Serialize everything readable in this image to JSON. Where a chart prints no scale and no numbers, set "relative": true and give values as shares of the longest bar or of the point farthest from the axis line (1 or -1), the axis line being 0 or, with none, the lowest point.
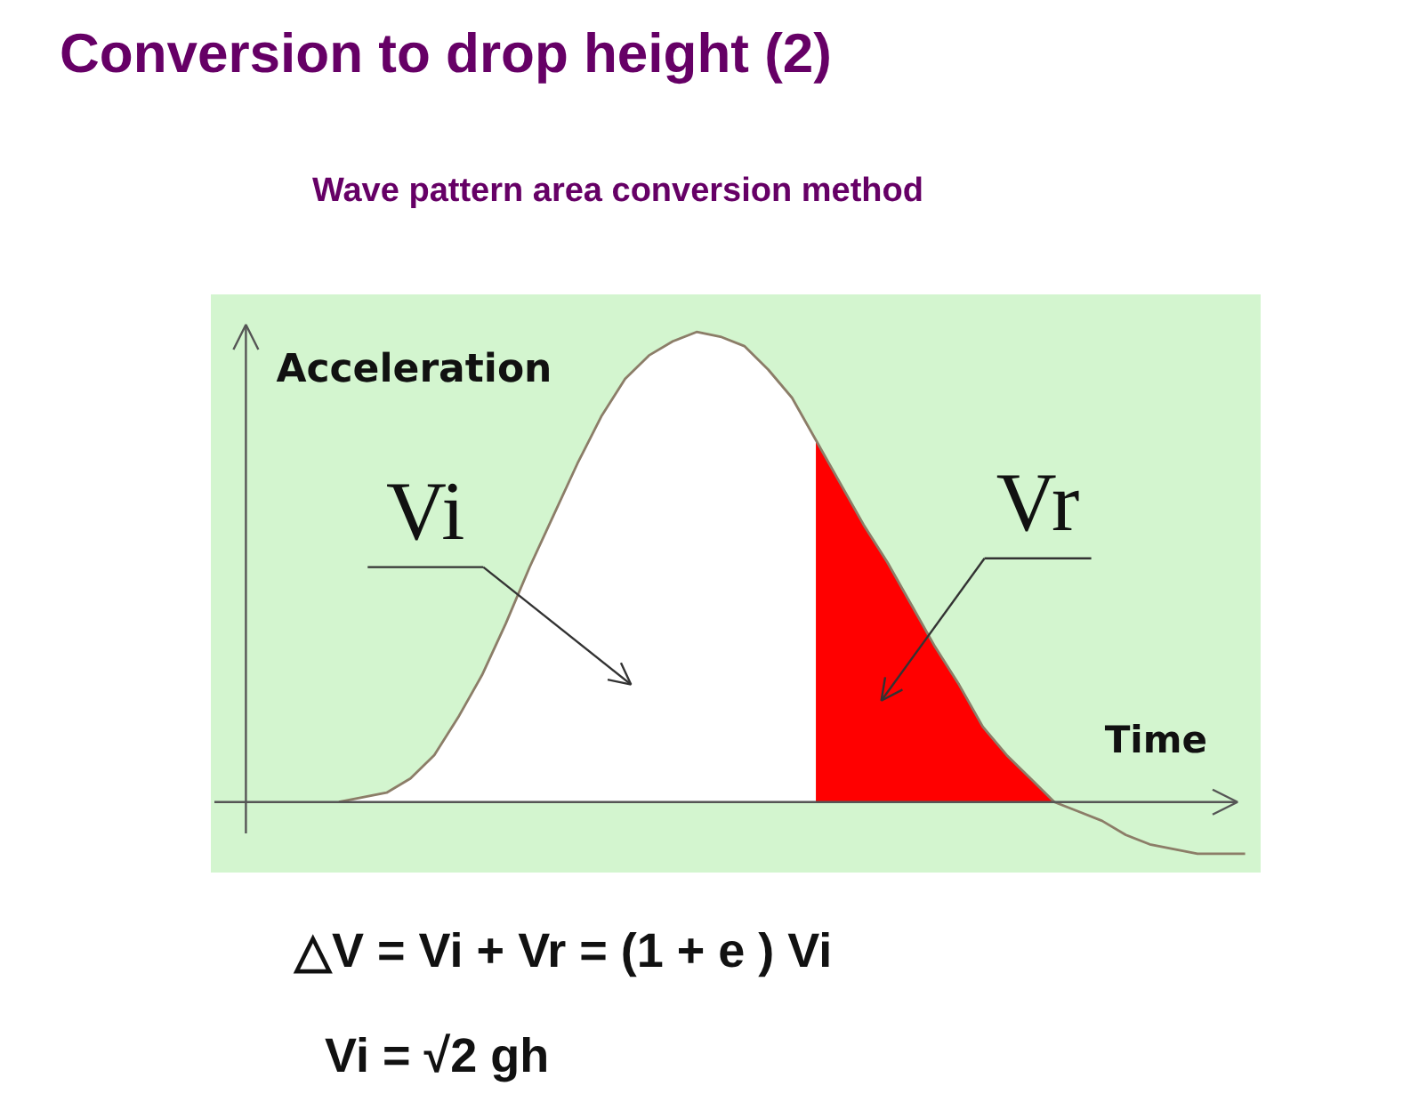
{
  "chart_data": {
    "type": "area",
    "title": "Conversion to drop height (2)",
    "subtitle": "Wave pattern area conversion method",
    "xlabel": "Time",
    "ylabel": "Acceleration",
    "categories": [
      null,
      null,
      null,
      null,
      null,
      null,
      null,
      null,
      null,
      null,
      null,
      null,
      null,
      null,
      null,
      null,
      null,
      null,
      null,
      null,
      null,
      null,
      null,
      null,
      null,
      null,
      null,
      null,
      null,
      null,
      null,
      null,
      null,
      null,
      null,
      null,
      null,
      null,
      null,
      null,
      null,
      null,
      null
    ],
    "relative": true,
    "grid": false,
    "tick_labels": false,
    "series": [
      {
        "name": "Vi",
        "color": "#ffffff",
        "values": [
          null,
          null,
          null,
          null,
          0,
          0.01,
          0.02,
          0.05,
          0.1,
          0.18,
          0.27,
          0.38,
          0.5,
          0.61,
          0.72,
          0.82,
          0.9,
          0.95,
          0.98,
          1.0,
          0.99,
          0.97,
          0.92,
          0.86,
          0.77,
          null,
          null,
          null,
          null,
          null,
          null,
          null,
          null,
          null,
          null,
          null,
          null,
          null,
          null,
          null,
          null,
          null,
          null
        ]
      },
      {
        "name": "Vr",
        "color": "#ff0000",
        "values": [
          null,
          null,
          null,
          null,
          null,
          null,
          null,
          null,
          null,
          null,
          null,
          null,
          null,
          null,
          null,
          null,
          null,
          null,
          null,
          null,
          null,
          null,
          null,
          null,
          0.77,
          0.68,
          0.59,
          0.51,
          0.42,
          0.33,
          0.25,
          0.16,
          0.1,
          0.05,
          0,
          null,
          null,
          null,
          null,
          null,
          null,
          null,
          null
        ]
      },
      {
        "type": "line",
        "color": "#8c7d68",
        "values": [
          null,
          null,
          null,
          null,
          0,
          0.01,
          0.02,
          0.05,
          0.1,
          0.18,
          0.27,
          0.38,
          0.5,
          0.61,
          0.72,
          0.82,
          0.9,
          0.95,
          0.98,
          1.0,
          0.99,
          0.97,
          0.92,
          0.86,
          0.77,
          0.68,
          0.59,
          0.51,
          0.42,
          0.33,
          0.25,
          0.16,
          0.1,
          0.05,
          0,
          -0.02,
          -0.04,
          -0.07,
          -0.09,
          -0.1,
          -0.11,
          -0.11,
          -0.11
        ]
      }
    ],
    "annotations": [
      "△V = Vi + Vr =  (1 + e ) Vi",
      "Vi = √2 gh"
    ]
  }
}
